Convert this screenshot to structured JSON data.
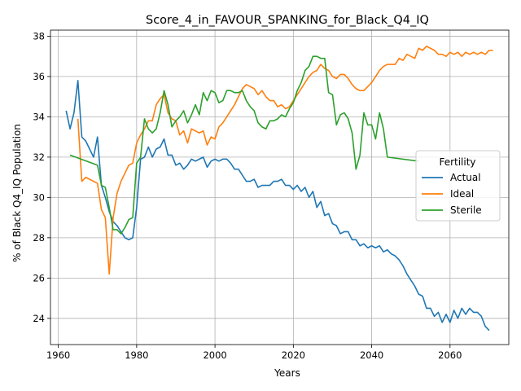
{
  "chart_data": {
    "type": "line",
    "title": "Score_4_in_FAVOUR_SPANKING_for_Black_Q4_IQ",
    "xlabel": "Years",
    "ylabel": "% of Black Q4_IQ Population",
    "xlim": [
      1958,
      2075
    ],
    "ylim": [
      22.7,
      38.3
    ],
    "xticks": [
      1960,
      1980,
      2000,
      2020,
      2040,
      2060
    ],
    "yticks": [
      24,
      26,
      28,
      30,
      32,
      34,
      36,
      38
    ],
    "grid": true,
    "legend": {
      "title": "Fertility",
      "placement": "center-right"
    },
    "series": [
      {
        "name": "Actual",
        "color": "#1f77b4",
        "points": [
          [
            1962,
            34.3
          ],
          [
            1963,
            33.4
          ],
          [
            1964,
            34.2
          ],
          [
            1965,
            35.8
          ],
          [
            1966,
            33.0
          ],
          [
            1967,
            32.8
          ],
          [
            1968,
            32.4
          ],
          [
            1969,
            32.0
          ],
          [
            1970,
            33.0
          ],
          [
            1971,
            30.6
          ],
          [
            1972,
            30.0
          ],
          [
            1973,
            29.3
          ],
          [
            1974,
            28.8
          ],
          [
            1975,
            28.6
          ],
          [
            1976,
            28.3
          ],
          [
            1977,
            28.0
          ],
          [
            1978,
            27.9
          ],
          [
            1979,
            28.0
          ],
          [
            1980,
            29.5
          ],
          [
            1981,
            31.9
          ],
          [
            1982,
            32.0
          ],
          [
            1983,
            32.5
          ],
          [
            1984,
            32.0
          ],
          [
            1985,
            32.4
          ],
          [
            1986,
            32.5
          ],
          [
            1987,
            32.9
          ],
          [
            1988,
            32.1
          ],
          [
            1989,
            32.1
          ],
          [
            1990,
            31.6
          ],
          [
            1991,
            31.7
          ],
          [
            1992,
            31.4
          ],
          [
            1993,
            31.6
          ],
          [
            1994,
            31.9
          ],
          [
            1995,
            31.8
          ],
          [
            1996,
            31.9
          ],
          [
            1997,
            32.0
          ],
          [
            1998,
            31.5
          ],
          [
            1999,
            31.8
          ],
          [
            2000,
            31.9
          ],
          [
            2001,
            31.8
          ],
          [
            2002,
            31.9
          ],
          [
            2003,
            31.9
          ],
          [
            2004,
            31.7
          ],
          [
            2005,
            31.4
          ],
          [
            2006,
            31.4
          ],
          [
            2007,
            31.1
          ],
          [
            2008,
            30.8
          ],
          [
            2009,
            30.8
          ],
          [
            2010,
            30.9
          ],
          [
            2011,
            30.5
          ],
          [
            2012,
            30.6
          ],
          [
            2013,
            30.6
          ],
          [
            2014,
            30.6
          ],
          [
            2015,
            30.8
          ],
          [
            2016,
            30.8
          ],
          [
            2017,
            30.9
          ],
          [
            2018,
            30.6
          ],
          [
            2019,
            30.6
          ],
          [
            2020,
            30.4
          ],
          [
            2021,
            30.6
          ],
          [
            2022,
            30.3
          ],
          [
            2023,
            30.5
          ],
          [
            2024,
            30.0
          ],
          [
            2025,
            30.3
          ],
          [
            2026,
            29.5
          ],
          [
            2027,
            29.8
          ],
          [
            2028,
            29.1
          ],
          [
            2029,
            29.2
          ],
          [
            2030,
            28.7
          ],
          [
            2031,
            28.6
          ],
          [
            2032,
            28.2
          ],
          [
            2033,
            28.3
          ],
          [
            2034,
            28.3
          ],
          [
            2035,
            27.9
          ],
          [
            2036,
            27.9
          ],
          [
            2037,
            27.6
          ],
          [
            2038,
            27.7
          ],
          [
            2039,
            27.5
          ],
          [
            2040,
            27.6
          ],
          [
            2041,
            27.5
          ],
          [
            2042,
            27.6
          ],
          [
            2043,
            27.3
          ],
          [
            2044,
            27.4
          ],
          [
            2045,
            27.2
          ],
          [
            2046,
            27.1
          ],
          [
            2047,
            26.9
          ],
          [
            2048,
            26.6
          ],
          [
            2049,
            26.2
          ],
          [
            2050,
            25.9
          ],
          [
            2051,
            25.6
          ],
          [
            2052,
            25.2
          ],
          [
            2053,
            25.1
          ],
          [
            2054,
            24.5
          ],
          [
            2055,
            24.5
          ],
          [
            2056,
            24.1
          ],
          [
            2057,
            24.3
          ],
          [
            2058,
            23.8
          ],
          [
            2059,
            24.2
          ],
          [
            2060,
            23.8
          ],
          [
            2061,
            24.4
          ],
          [
            2062,
            24.0
          ],
          [
            2063,
            24.5
          ],
          [
            2064,
            24.2
          ],
          [
            2065,
            24.5
          ],
          [
            2066,
            24.3
          ],
          [
            2067,
            24.3
          ],
          [
            2068,
            24.1
          ],
          [
            2069,
            23.6
          ],
          [
            2070,
            23.4
          ]
        ]
      },
      {
        "name": "Ideal",
        "color": "#ff7f0e",
        "points": [
          [
            1965,
            33.9
          ],
          [
            1966,
            30.8
          ],
          [
            1967,
            31.0
          ],
          [
            1970,
            30.7
          ],
          [
            1971,
            29.4
          ],
          [
            1972,
            29.0
          ],
          [
            1973,
            26.2
          ],
          [
            1974,
            29.0
          ],
          [
            1975,
            30.2
          ],
          [
            1976,
            30.8
          ],
          [
            1977,
            31.2
          ],
          [
            1978,
            31.6
          ],
          [
            1979,
            31.7
          ],
          [
            1980,
            32.7
          ],
          [
            1981,
            33.1
          ],
          [
            1982,
            33.4
          ],
          [
            1983,
            33.8
          ],
          [
            1984,
            33.8
          ],
          [
            1985,
            34.6
          ],
          [
            1986,
            34.9
          ],
          [
            1987,
            35.1
          ],
          [
            1988,
            34.2
          ],
          [
            1989,
            33.9
          ],
          [
            1990,
            33.8
          ],
          [
            1991,
            33.1
          ],
          [
            1992,
            33.3
          ],
          [
            1993,
            32.7
          ],
          [
            1994,
            33.4
          ],
          [
            1995,
            33.3
          ],
          [
            1996,
            33.2
          ],
          [
            1997,
            33.3
          ],
          [
            1998,
            32.6
          ],
          [
            1999,
            33.0
          ],
          [
            2000,
            32.9
          ],
          [
            2001,
            33.5
          ],
          [
            2002,
            33.7
          ],
          [
            2003,
            34.0
          ],
          [
            2004,
            34.3
          ],
          [
            2005,
            34.6
          ],
          [
            2006,
            35.0
          ],
          [
            2007,
            35.4
          ],
          [
            2008,
            35.6
          ],
          [
            2009,
            35.5
          ],
          [
            2010,
            35.4
          ],
          [
            2011,
            35.1
          ],
          [
            2012,
            35.3
          ],
          [
            2013,
            35.0
          ],
          [
            2014,
            34.8
          ],
          [
            2015,
            34.8
          ],
          [
            2016,
            34.5
          ],
          [
            2017,
            34.6
          ],
          [
            2018,
            34.4
          ],
          [
            2019,
            34.5
          ],
          [
            2020,
            34.8
          ],
          [
            2021,
            35.1
          ],
          [
            2022,
            35.4
          ],
          [
            2023,
            35.7
          ],
          [
            2024,
            36.0
          ],
          [
            2025,
            36.2
          ],
          [
            2026,
            36.3
          ],
          [
            2027,
            36.6
          ],
          [
            2028,
            36.4
          ],
          [
            2029,
            36.3
          ],
          [
            2030,
            36.0
          ],
          [
            2031,
            35.9
          ],
          [
            2032,
            36.1
          ],
          [
            2033,
            36.1
          ],
          [
            2034,
            35.9
          ],
          [
            2035,
            35.6
          ],
          [
            2036,
            35.4
          ],
          [
            2037,
            35.3
          ],
          [
            2038,
            35.3
          ],
          [
            2039,
            35.5
          ],
          [
            2040,
            35.7
          ],
          [
            2041,
            36.0
          ],
          [
            2042,
            36.3
          ],
          [
            2043,
            36.5
          ],
          [
            2044,
            36.6
          ],
          [
            2045,
            36.6
          ],
          [
            2046,
            36.6
          ],
          [
            2047,
            36.9
          ],
          [
            2048,
            36.8
          ],
          [
            2049,
            37.1
          ],
          [
            2050,
            37.0
          ],
          [
            2051,
            36.9
          ],
          [
            2052,
            37.4
          ],
          [
            2053,
            37.3
          ],
          [
            2054,
            37.5
          ],
          [
            2055,
            37.4
          ],
          [
            2056,
            37.3
          ],
          [
            2057,
            37.1
          ],
          [
            2058,
            37.1
          ],
          [
            2059,
            37.0
          ],
          [
            2060,
            37.2
          ],
          [
            2061,
            37.1
          ],
          [
            2062,
            37.2
          ],
          [
            2063,
            37.0
          ],
          [
            2064,
            37.2
          ],
          [
            2065,
            37.1
          ],
          [
            2066,
            37.2
          ],
          [
            2067,
            37.1
          ],
          [
            2068,
            37.2
          ],
          [
            2069,
            37.1
          ],
          [
            2070,
            37.3
          ],
          [
            2071,
            37.3
          ]
        ]
      },
      {
        "name": "Sterile",
        "color": "#2ca02c",
        "points": [
          [
            1963,
            32.1
          ],
          [
            1970,
            31.6
          ],
          [
            1971,
            30.6
          ],
          [
            1972,
            30.5
          ],
          [
            1973,
            29.5
          ],
          [
            1974,
            28.4
          ],
          [
            1975,
            28.4
          ],
          [
            1976,
            28.2
          ],
          [
            1977,
            28.5
          ],
          [
            1978,
            28.9
          ],
          [
            1979,
            29.0
          ],
          [
            1980,
            31.7
          ],
          [
            1981,
            32.0
          ],
          [
            1982,
            33.9
          ],
          [
            1983,
            33.4
          ],
          [
            1984,
            33.2
          ],
          [
            1985,
            33.4
          ],
          [
            1986,
            34.2
          ],
          [
            1987,
            35.3
          ],
          [
            1988,
            34.6
          ],
          [
            1989,
            33.5
          ],
          [
            1990,
            33.8
          ],
          [
            1991,
            34.0
          ],
          [
            1992,
            34.3
          ],
          [
            1993,
            33.7
          ],
          [
            1994,
            34.1
          ],
          [
            1995,
            34.6
          ],
          [
            1996,
            34.1
          ],
          [
            1997,
            35.2
          ],
          [
            1998,
            34.8
          ],
          [
            1999,
            35.3
          ],
          [
            2000,
            35.2
          ],
          [
            2001,
            34.7
          ],
          [
            2002,
            34.8
          ],
          [
            2003,
            35.3
          ],
          [
            2004,
            35.3
          ],
          [
            2005,
            35.2
          ],
          [
            2006,
            35.2
          ],
          [
            2007,
            35.3
          ],
          [
            2008,
            34.8
          ],
          [
            2009,
            34.5
          ],
          [
            2010,
            34.3
          ],
          [
            2011,
            33.7
          ],
          [
            2012,
            33.5
          ],
          [
            2013,
            33.4
          ],
          [
            2014,
            33.8
          ],
          [
            2015,
            33.8
          ],
          [
            2016,
            33.9
          ],
          [
            2017,
            34.1
          ],
          [
            2018,
            34.0
          ],
          [
            2019,
            34.4
          ],
          [
            2020,
            34.7
          ],
          [
            2021,
            35.3
          ],
          [
            2022,
            35.7
          ],
          [
            2023,
            36.3
          ],
          [
            2024,
            36.5
          ],
          [
            2025,
            37.0
          ],
          [
            2026,
            37.0
          ],
          [
            2027,
            36.9
          ],
          [
            2028,
            36.9
          ],
          [
            2029,
            35.2
          ],
          [
            2030,
            35.1
          ],
          [
            2031,
            33.6
          ],
          [
            2032,
            34.1
          ],
          [
            2033,
            34.2
          ],
          [
            2034,
            33.9
          ],
          [
            2035,
            33.2
          ],
          [
            2036,
            31.4
          ],
          [
            2037,
            32.1
          ],
          [
            2038,
            34.2
          ],
          [
            2039,
            33.6
          ],
          [
            2040,
            33.6
          ],
          [
            2041,
            32.9
          ],
          [
            2042,
            34.2
          ],
          [
            2043,
            33.4
          ],
          [
            2044,
            32.0
          ],
          [
            2052,
            31.8
          ]
        ]
      }
    ]
  }
}
